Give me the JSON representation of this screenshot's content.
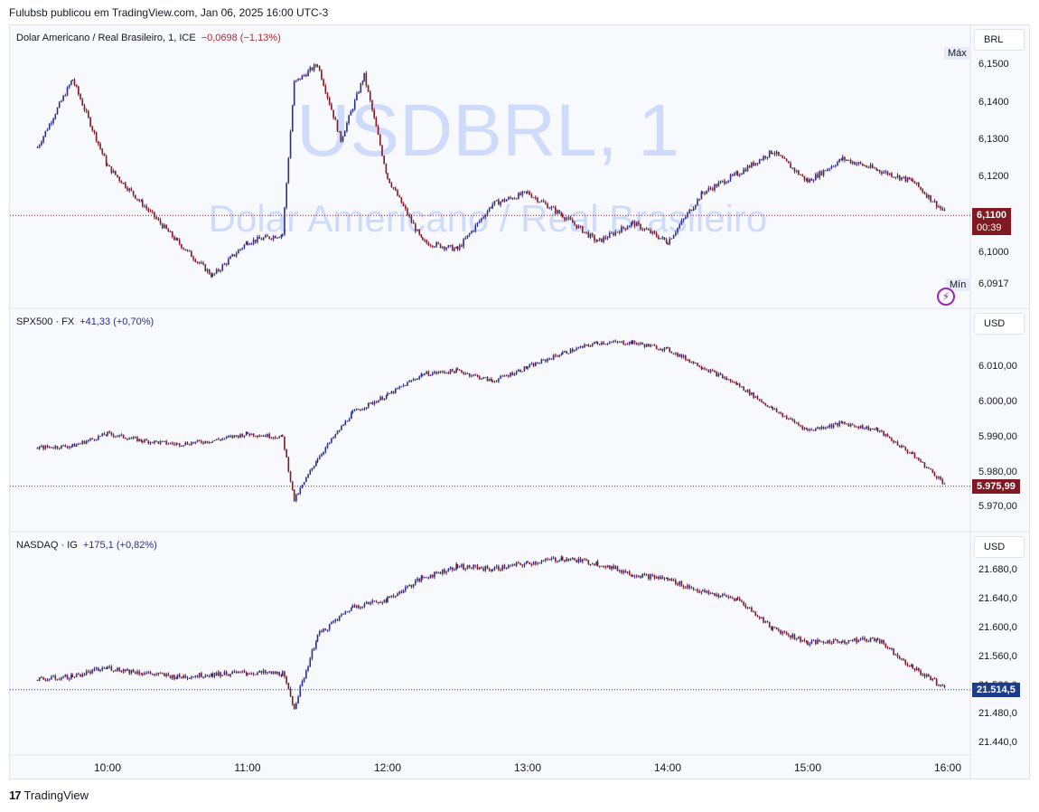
{
  "header": {
    "text": "Fulubsb publicou em TradingView.com, Jan 06, 2025 16:00 UTC-3"
  },
  "footer": {
    "brand": "TradingView",
    "mark": "17"
  },
  "chart_data": [
    {
      "type": "candlestick",
      "title": "Dolar Americano / Real Brasileiro, 1, ICE",
      "change": "−0,0698 (−1,13%)",
      "currency": "BRL",
      "watermark_main": "USDBRL, 1",
      "watermark_sub": "Dolar Americano / Real Brasileiro",
      "yticks": [
        "6,1500",
        "6,1400",
        "6,1300",
        "6,1200",
        "6,1100",
        "6,1000",
        "6,0917"
      ],
      "ylim": [
        6.0917,
        6.156
      ],
      "last_price": "6,1100",
      "countdown": "00:39",
      "max_label": "Máx",
      "min_label": "Mín",
      "max_value": 6.156,
      "min_value": 6.0917,
      "x": [
        "09:30",
        "09:45",
        "10:00",
        "10:15",
        "10:30",
        "10:45",
        "11:00",
        "11:15",
        "11:20",
        "11:30",
        "11:40",
        "11:50",
        "12:00",
        "12:15",
        "12:30",
        "12:45",
        "13:00",
        "13:15",
        "13:30",
        "13:45",
        "14:00",
        "14:15",
        "14:30",
        "14:45",
        "15:00",
        "15:15",
        "15:30",
        "15:45",
        "16:00"
      ],
      "close": [
        6.128,
        6.146,
        6.123,
        6.113,
        6.103,
        6.094,
        6.103,
        6.105,
        6.145,
        6.15,
        6.13,
        6.147,
        6.12,
        6.103,
        6.101,
        6.113,
        6.116,
        6.11,
        6.103,
        6.108,
        6.103,
        6.116,
        6.121,
        6.127,
        6.119,
        6.125,
        6.122,
        6.119,
        6.11
      ]
    },
    {
      "type": "candlestick",
      "title": "SPX500 · FX",
      "change": "+41,33 (+0,70%)",
      "currency": "USD",
      "yticks": [
        "6.010,00",
        "6.000,00",
        "5.990,00",
        "5.980,00",
        "5.970,00"
      ],
      "ylim": [
        5967,
        6020
      ],
      "last_price": "5.975,99",
      "x": [
        "09:30",
        "09:45",
        "10:00",
        "10:15",
        "10:30",
        "10:45",
        "11:00",
        "11:15",
        "11:20",
        "11:30",
        "11:45",
        "12:00",
        "12:15",
        "12:30",
        "12:45",
        "13:00",
        "13:15",
        "13:30",
        "13:45",
        "14:00",
        "14:15",
        "14:30",
        "14:45",
        "15:00",
        "15:15",
        "15:30",
        "15:45",
        "16:00"
      ],
      "close": [
        5987,
        5987.5,
        5991,
        5989,
        5988,
        5989,
        5991,
        5990,
        5972,
        5984,
        5997,
        6002,
        6008,
        6009,
        6006,
        6010,
        6014,
        6017,
        6017,
        6015,
        6010,
        6005,
        5998,
        5992,
        5994,
        5992,
        5985,
        5976
      ]
    },
    {
      "type": "candlestick",
      "title": "NASDAQ · IG",
      "change": "+175,1 (+0,82%)",
      "currency": "USD",
      "yticks": [
        "21.680,0",
        "21.640,0",
        "21.600,0",
        "21.560,0",
        "21.520,0",
        "21.480,0",
        "21.440,0"
      ],
      "ylim": [
        21430,
        21710
      ],
      "last_price": "21.514,5",
      "x": [
        "09:30",
        "09:45",
        "10:00",
        "10:15",
        "10:30",
        "10:45",
        "11:00",
        "11:15",
        "11:20",
        "11:30",
        "11:45",
        "12:00",
        "12:15",
        "12:30",
        "12:45",
        "13:00",
        "13:15",
        "13:30",
        "13:45",
        "14:00",
        "14:15",
        "14:30",
        "14:45",
        "15:00",
        "15:15",
        "15:30",
        "15:45",
        "16:00"
      ],
      "close": [
        21528,
        21533,
        21545,
        21538,
        21532,
        21536,
        21538,
        21537,
        21490,
        21590,
        21630,
        21640,
        21670,
        21686,
        21682,
        21690,
        21697,
        21690,
        21675,
        21668,
        21650,
        21640,
        21600,
        21580,
        21582,
        21585,
        21545,
        21514.5
      ]
    }
  ],
  "xaxis": {
    "ticks": [
      "10:00",
      "11:00",
      "12:00",
      "13:00",
      "14:00",
      "15:00",
      "16:00"
    ]
  },
  "colors": {
    "up": "#2a2e8c",
    "down": "#801922",
    "watermark": "#c9d6fb",
    "last_down": "#801922",
    "last_up": "#1e3c8c"
  }
}
